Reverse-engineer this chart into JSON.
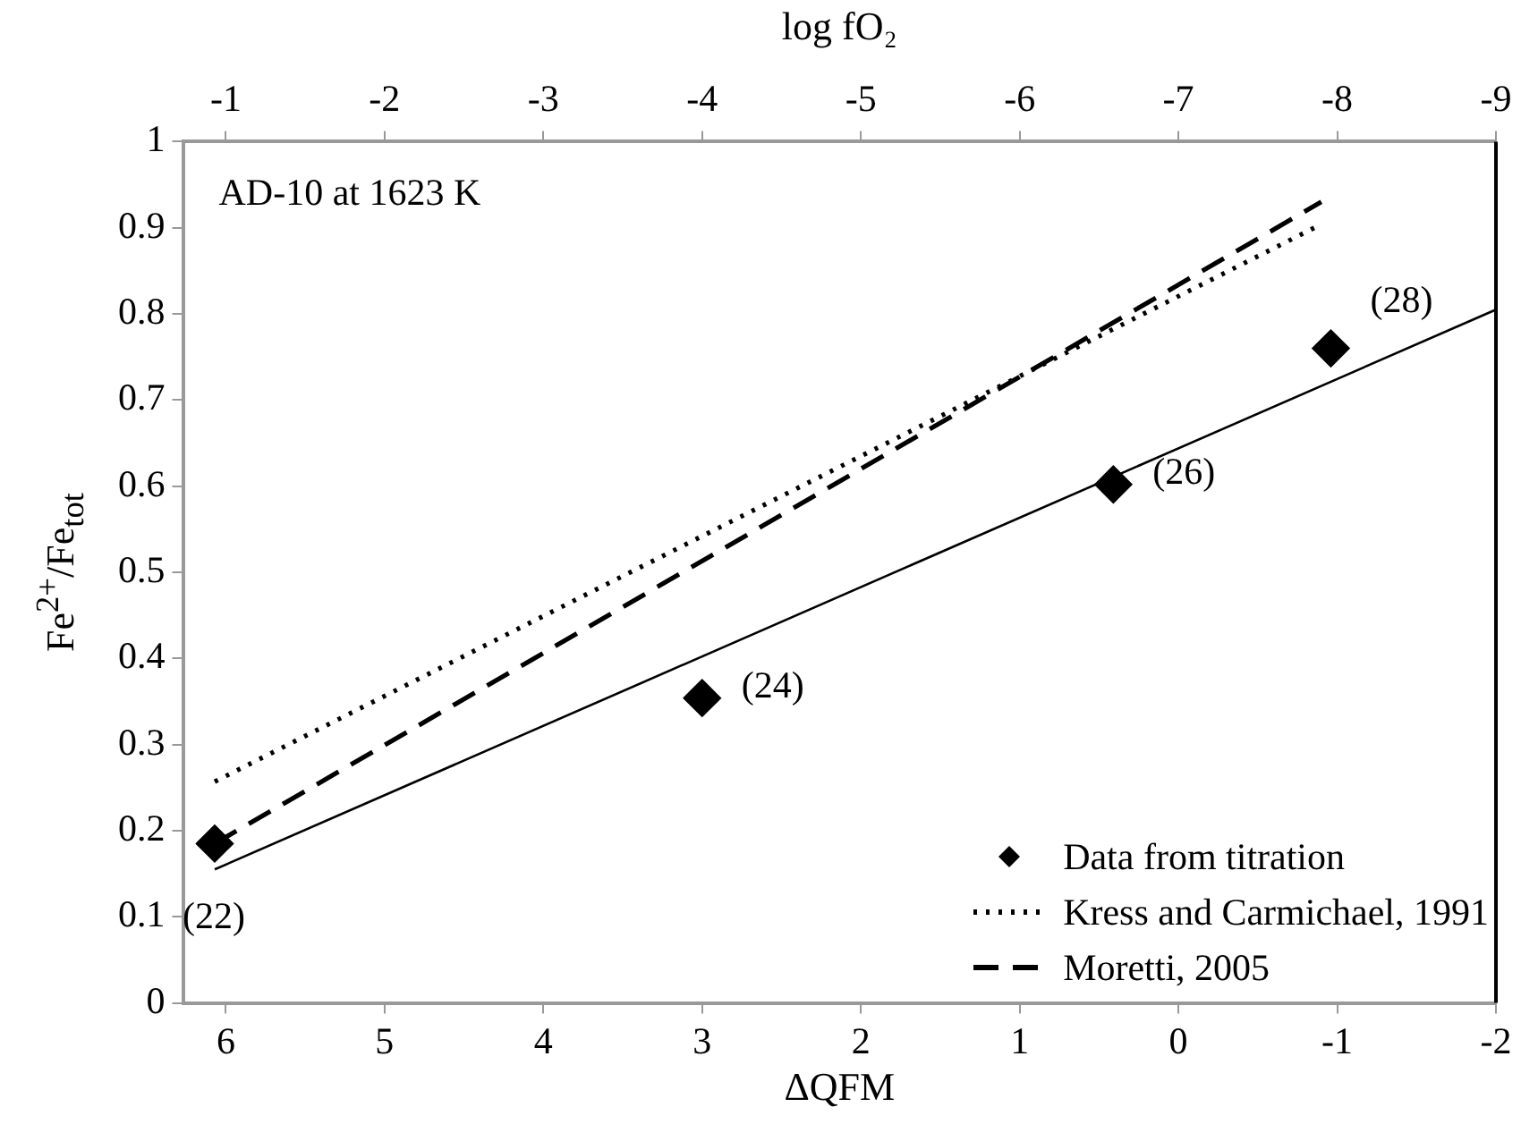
{
  "chart_data": {
    "type": "scatter",
    "xlabel": "ΔQFM",
    "ylabel": "Fe$^{2+}$/Fe$_{tot}$",
    "x2label": "log fO₂",
    "xlim": [
      6.27,
      -2
    ],
    "xticks": [
      6,
      5,
      4,
      3,
      2,
      1,
      0,
      -1,
      -2
    ],
    "x2lim": [
      -0.73,
      -9
    ],
    "x2ticks": [
      -1,
      -2,
      -3,
      -4,
      -5,
      -6,
      -7,
      -8,
      -9
    ],
    "ylim": [
      0,
      1
    ],
    "yticks": [
      0,
      0.1,
      0.2,
      0.3,
      0.4,
      0.5,
      0.6,
      0.7,
      0.8,
      0.9,
      1
    ],
    "grid": false,
    "legend": "bottom right",
    "series": [
      {
        "name": "Data from titration",
        "type": "scatter",
        "marker": "diamond",
        "color": "#000000",
        "x": [
          6.07,
          3.0,
          0.41,
          -0.96
        ],
        "values": [
          0.185,
          0.354,
          0.602,
          0.76
        ]
      },
      {
        "type": "line",
        "marker": "none",
        "line_style": "solid",
        "color": "#000000",
        "x": [
          6.07,
          -2
        ],
        "values": [
          0.155,
          0.805
        ]
      },
      {
        "name": "Kress and Carmichael, 1991",
        "type": "line",
        "marker": "none",
        "line_style": "dotted",
        "color": "#000000",
        "x": [
          6.07,
          -0.9
        ],
        "values": [
          0.257,
          0.904
        ]
      },
      {
        "name": "Moretti, 2005",
        "type": "line",
        "marker": "none",
        "line_style": "dashed",
        "color": "#000000",
        "x": [
          6.07,
          -0.9
        ],
        "values": [
          0.185,
          0.93
        ]
      }
    ],
    "annotations": [
      "AD-10 at 1623 K",
      {
        "text": "(22)",
        "x": 6.07,
        "y": 0.185
      },
      {
        "text": "(24)",
        "x": 3.0,
        "y": 0.354
      },
      {
        "text": "(26)",
        "x": 0.41,
        "y": 0.602
      },
      {
        "text": "(28)",
        "x": -0.96,
        "y": 0.76
      }
    ]
  }
}
